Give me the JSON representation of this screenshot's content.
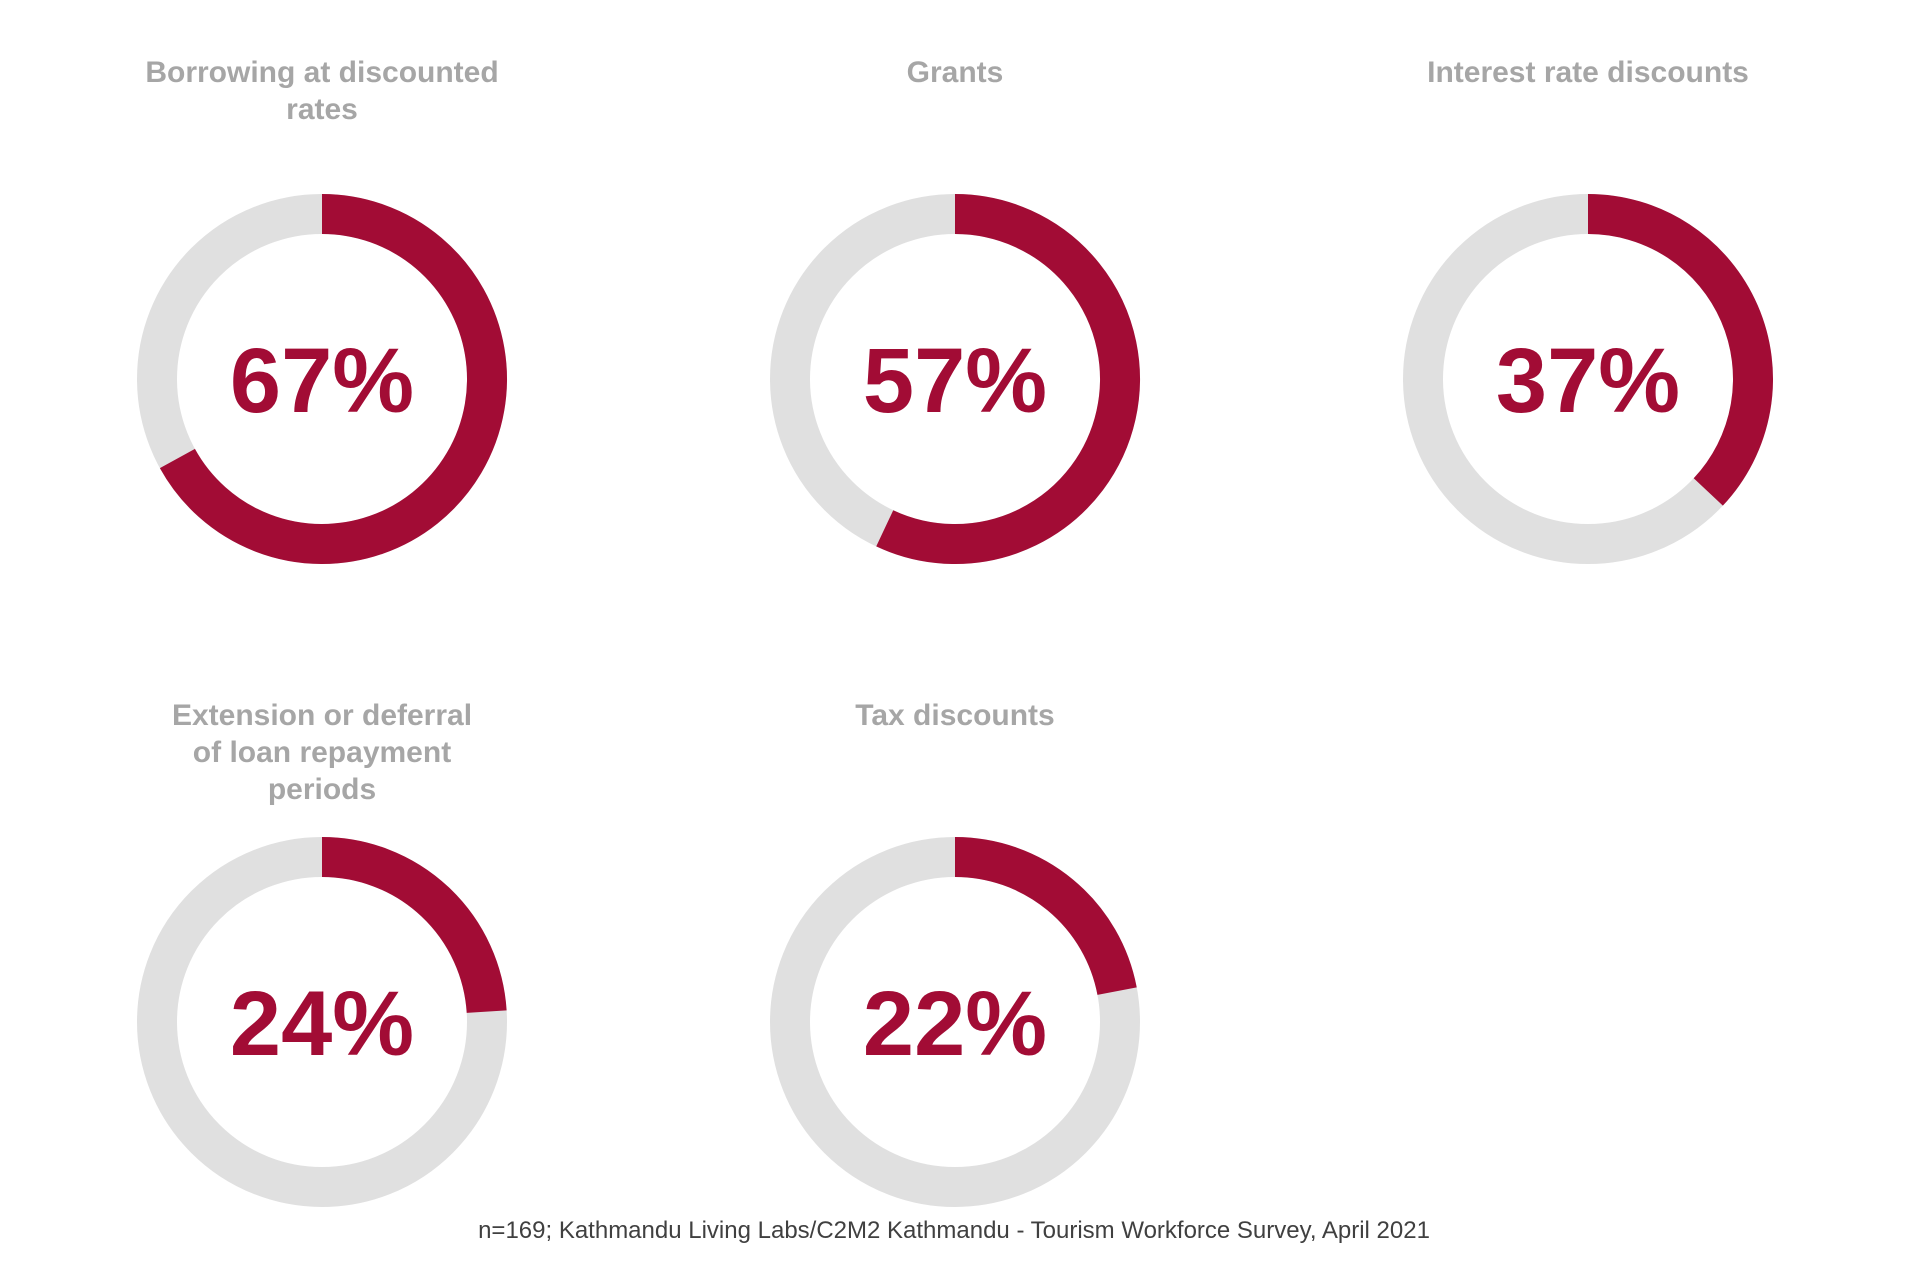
{
  "colors": {
    "accent": "#a20c35",
    "track": "#e0e0e0",
    "title": "#a6a6a6",
    "note": "#404040"
  },
  "chart_data": [
    {
      "type": "pie",
      "title": "Borrowing at discounted rates",
      "value": 67,
      "label": "67%"
    },
    {
      "type": "pie",
      "title": "Grants",
      "value": 57,
      "label": "57%"
    },
    {
      "type": "pie",
      "title": "Interest rate discounts",
      "value": 37,
      "label": "37%"
    },
    {
      "type": "pie",
      "title": "Extension or deferral of loan repayment periods",
      "value": 24,
      "label": "24%"
    },
    {
      "type": "pie",
      "title": "Tax discounts",
      "value": 22,
      "label": "22%"
    }
  ],
  "source_note": "n=169; Kathmandu Living Labs/C2M2 Kathmandu - Tourism Workforce Survey, April 2021"
}
